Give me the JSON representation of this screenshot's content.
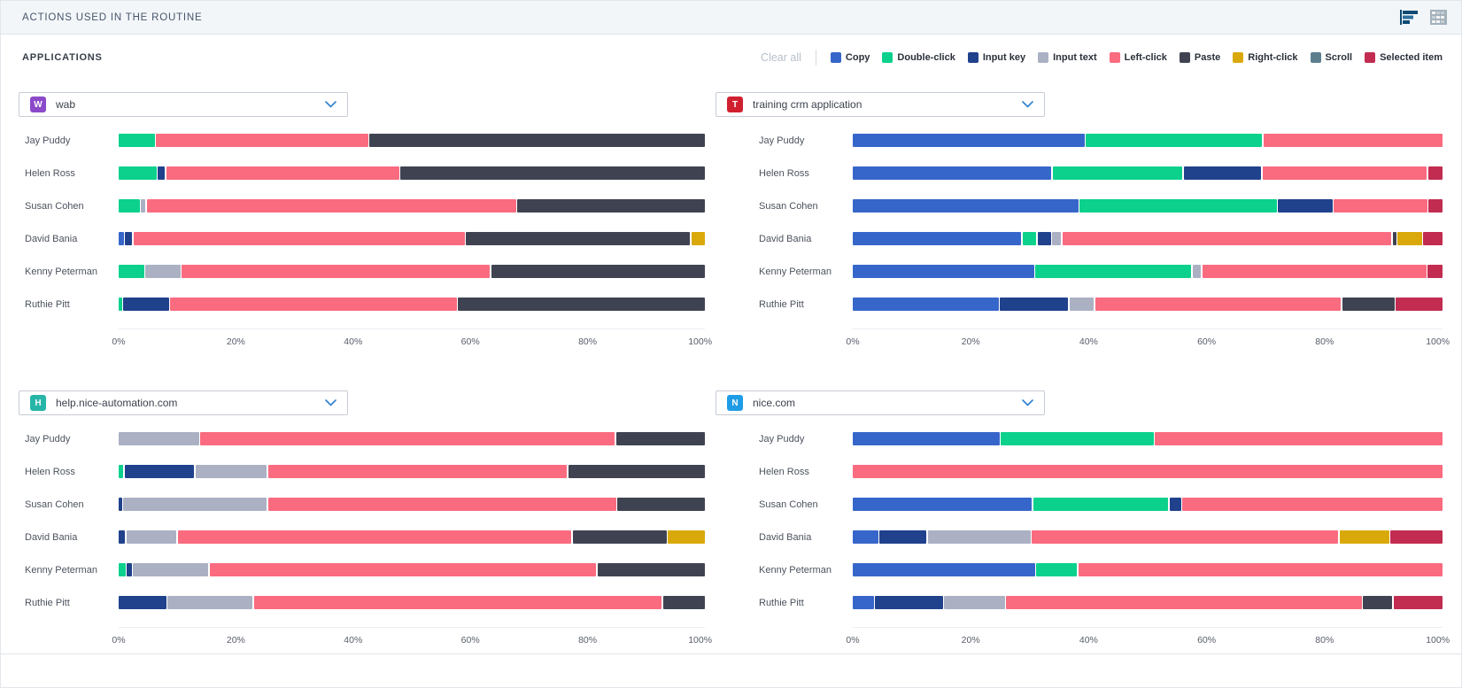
{
  "header": {
    "title": "ACTIONS USED IN THE ROUTINE",
    "icons": [
      {
        "name": "chart-view-icon",
        "active_color": "#0d4a72"
      },
      {
        "name": "table-view-icon",
        "color": "#9fadb8"
      }
    ]
  },
  "subheader": {
    "title": "APPLICATIONS",
    "clear_all_label": "Clear all"
  },
  "legend": {
    "position": "top-right",
    "items": [
      {
        "key": "copy",
        "label": "Copy",
        "color": "#3766ca"
      },
      {
        "key": "double-click",
        "label": "Double-click",
        "color": "#0bd18c"
      },
      {
        "key": "input-key",
        "label": "Input key",
        "color": "#20418c"
      },
      {
        "key": "input-text",
        "label": "Input text",
        "color": "#abb1c3"
      },
      {
        "key": "left-click",
        "label": "Left-click",
        "color": "#fa6b80"
      },
      {
        "key": "paste",
        "label": "Paste",
        "color": "#3f4351"
      },
      {
        "key": "right-click",
        "label": "Right-click",
        "color": "#d9a90c"
      },
      {
        "key": "scroll",
        "label": "Scroll",
        "color": "#5d7f8d"
      },
      {
        "key": "selected-item",
        "label": "Selected item",
        "color": "#c22c50"
      }
    ]
  },
  "chart_data": [
    {
      "type": "bar",
      "orientation": "horizontal-stacked",
      "units": "percent",
      "xlim": [
        0,
        100
      ],
      "x_ticks": [
        "0%",
        "20%",
        "40%",
        "60%",
        "80%",
        "100%"
      ],
      "application": {
        "name": "wab",
        "icon_letter": "W",
        "icon_color": "#8b4ac9"
      },
      "categories": [
        "Jay Puddy",
        "Helen Ross",
        "Susan Cohen",
        "David Bania",
        "Kenny Peterman",
        "Ruthie Pitt"
      ],
      "rows": [
        {
          "user": "Jay Puddy",
          "segments": [
            {
              "action": "Double-click",
              "pct": 6.2
            },
            {
              "action": "Left-click",
              "pct": 36.3
            },
            {
              "action": "Paste",
              "pct": 57.5
            }
          ]
        },
        {
          "user": "Helen Ross",
          "segments": [
            {
              "action": "Double-click",
              "pct": 6.5
            },
            {
              "action": "Input key",
              "pct": 1.2
            },
            {
              "action": "Left-click",
              "pct": 40.0
            },
            {
              "action": "Paste",
              "pct": 52.3
            }
          ]
        },
        {
          "user": "Susan Cohen",
          "segments": [
            {
              "action": "Double-click",
              "pct": 3.6
            },
            {
              "action": "Input text",
              "pct": 0.8
            },
            {
              "action": "Left-click",
              "pct": 63.4
            },
            {
              "action": "Paste",
              "pct": 32.2
            }
          ]
        },
        {
          "user": "David Bania",
          "segments": [
            {
              "action": "Copy",
              "pct": 0.9
            },
            {
              "action": "Input key",
              "pct": 1.2
            },
            {
              "action": "Left-click",
              "pct": 57.0
            },
            {
              "action": "Paste",
              "pct": 38.6
            },
            {
              "action": "Right-click",
              "pct": 2.3
            }
          ]
        },
        {
          "user": "Kenny Peterman",
          "segments": [
            {
              "action": "Double-click",
              "pct": 4.4
            },
            {
              "action": "Input text",
              "pct": 6.0
            },
            {
              "action": "Left-click",
              "pct": 52.9
            },
            {
              "action": "Paste",
              "pct": 36.7
            }
          ]
        },
        {
          "user": "Ruthie Pitt",
          "segments": [
            {
              "action": "Double-click",
              "pct": 0.6
            },
            {
              "action": "Input key",
              "pct": 7.8
            },
            {
              "action": "Left-click",
              "pct": 49.2
            },
            {
              "action": "Paste",
              "pct": 42.4
            }
          ]
        }
      ]
    },
    {
      "type": "bar",
      "orientation": "horizontal-stacked",
      "units": "percent",
      "xlim": [
        0,
        100
      ],
      "x_ticks": [
        "0%",
        "20%",
        "40%",
        "60%",
        "80%",
        "100%"
      ],
      "application": {
        "name": "training crm application",
        "icon_letter": "T",
        "icon_color": "#d0202f"
      },
      "categories": [
        "Jay Puddy",
        "Helen Ross",
        "Susan Cohen",
        "David Bania",
        "Kenny Peterman",
        "Ruthie Pitt"
      ],
      "rows": [
        {
          "user": "Jay Puddy",
          "segments": [
            {
              "action": "Copy",
              "pct": 39.5
            },
            {
              "action": "Double-click",
              "pct": 30.0
            },
            {
              "action": "Left-click",
              "pct": 30.5
            }
          ]
        },
        {
          "user": "Helen Ross",
          "segments": [
            {
              "action": "Copy",
              "pct": 34.0
            },
            {
              "action": "Double-click",
              "pct": 22.2
            },
            {
              "action": "Input key",
              "pct": 13.2
            },
            {
              "action": "Left-click",
              "pct": 28.1
            },
            {
              "action": "Selected item",
              "pct": 2.5
            }
          ]
        },
        {
          "user": "Susan Cohen",
          "segments": [
            {
              "action": "Copy",
              "pct": 38.6
            },
            {
              "action": "Double-click",
              "pct": 33.7
            },
            {
              "action": "Input key",
              "pct": 9.3
            },
            {
              "action": "Left-click",
              "pct": 16.0
            },
            {
              "action": "Selected item",
              "pct": 2.4
            }
          ]
        },
        {
          "user": "David Bania",
          "segments": [
            {
              "action": "Copy",
              "pct": 29.0
            },
            {
              "action": "Double-click",
              "pct": 2.4
            },
            {
              "action": "Input key",
              "pct": 2.3
            },
            {
              "action": "Input text",
              "pct": 1.5
            },
            {
              "action": "Left-click",
              "pct": 56.7
            },
            {
              "action": "Paste",
              "pct": 0.6
            },
            {
              "action": "Right-click",
              "pct": 4.2
            },
            {
              "action": "Selected item",
              "pct": 3.3
            }
          ]
        },
        {
          "user": "Kenny Peterman",
          "segments": [
            {
              "action": "Copy",
              "pct": 31.0
            },
            {
              "action": "Double-click",
              "pct": 26.7
            },
            {
              "action": "Input text",
              "pct": 1.4
            },
            {
              "action": "Left-click",
              "pct": 38.4
            },
            {
              "action": "Selected item",
              "pct": 2.5
            }
          ]
        },
        {
          "user": "Ruthie Pitt",
          "segments": [
            {
              "action": "Copy",
              "pct": 25.0
            },
            {
              "action": "Input key",
              "pct": 11.7
            },
            {
              "action": "Input text",
              "pct": 4.2
            },
            {
              "action": "Left-click",
              "pct": 42.1
            },
            {
              "action": "Paste",
              "pct": 9.0
            },
            {
              "action": "Selected item",
              "pct": 8.0
            }
          ]
        }
      ]
    },
    {
      "type": "bar",
      "orientation": "horizontal-stacked",
      "units": "percent",
      "xlim": [
        0,
        100
      ],
      "x_ticks": [
        "0%",
        "20%",
        "40%",
        "60%",
        "80%",
        "100%"
      ],
      "application": {
        "name": "help.nice-automation.com",
        "icon_letter": "H",
        "icon_color": "#26b5a7"
      },
      "categories": [
        "Jay Puddy",
        "Helen Ross",
        "Susan Cohen",
        "David Bania",
        "Kenny Peterman",
        "Ruthie Pitt"
      ],
      "rows": [
        {
          "user": "Jay Puddy",
          "segments": [
            {
              "action": "Input text",
              "pct": 13.8
            },
            {
              "action": "Left-click",
              "pct": 71.0
            },
            {
              "action": "Paste",
              "pct": 15.2
            }
          ]
        },
        {
          "user": "Helen Ross",
          "segments": [
            {
              "action": "Double-click",
              "pct": 0.8
            },
            {
              "action": "Input key",
              "pct": 12.0
            },
            {
              "action": "Input text",
              "pct": 12.2
            },
            {
              "action": "Left-click",
              "pct": 51.5
            },
            {
              "action": "Paste",
              "pct": 23.5
            }
          ]
        },
        {
          "user": "Susan Cohen",
          "segments": [
            {
              "action": "Input key",
              "pct": 0.6
            },
            {
              "action": "Input text",
              "pct": 24.6
            },
            {
              "action": "Left-click",
              "pct": 59.8
            },
            {
              "action": "Paste",
              "pct": 15.0
            }
          ]
        },
        {
          "user": "David Bania",
          "segments": [
            {
              "action": "Input key",
              "pct": 1.1
            },
            {
              "action": "Input text",
              "pct": 8.6
            },
            {
              "action": "Left-click",
              "pct": 67.8
            },
            {
              "action": "Paste",
              "pct": 16.1
            },
            {
              "action": "Right-click",
              "pct": 6.4
            }
          ]
        },
        {
          "user": "Kenny Peterman",
          "segments": [
            {
              "action": "Double-click",
              "pct": 1.2
            },
            {
              "action": "Input key",
              "pct": 0.8
            },
            {
              "action": "Input text",
              "pct": 13.0
            },
            {
              "action": "Left-click",
              "pct": 66.5
            },
            {
              "action": "Paste",
              "pct": 18.5
            }
          ]
        },
        {
          "user": "Ruthie Pitt",
          "segments": [
            {
              "action": "Input key",
              "pct": 8.2
            },
            {
              "action": "Input text",
              "pct": 14.6
            },
            {
              "action": "Left-click",
              "pct": 70.0
            },
            {
              "action": "Paste",
              "pct": 7.2
            }
          ]
        }
      ]
    },
    {
      "type": "bar",
      "orientation": "horizontal-stacked",
      "units": "percent",
      "xlim": [
        0,
        100
      ],
      "x_ticks": [
        "0%",
        "20%",
        "40%",
        "60%",
        "80%",
        "100%"
      ],
      "application": {
        "name": "nice.com",
        "icon_letter": "N",
        "icon_color": "#1f9ce6"
      },
      "categories": [
        "Jay Puddy",
        "Helen Ross",
        "Susan Cohen",
        "David Bania",
        "Kenny Peterman",
        "Ruthie Pitt"
      ],
      "rows": [
        {
          "user": "Jay Puddy",
          "segments": [
            {
              "action": "Copy",
              "pct": 25.0
            },
            {
              "action": "Double-click",
              "pct": 26.0
            },
            {
              "action": "Left-click",
              "pct": 49.0
            }
          ]
        },
        {
          "user": "Helen Ross",
          "segments": [
            {
              "action": "Left-click",
              "pct": 100.0
            }
          ]
        },
        {
          "user": "Susan Cohen",
          "segments": [
            {
              "action": "Copy",
              "pct": 30.6
            },
            {
              "action": "Double-click",
              "pct": 23.0
            },
            {
              "action": "Input key",
              "pct": 2.0
            },
            {
              "action": "Left-click",
              "pct": 44.4
            }
          ]
        },
        {
          "user": "David Bania",
          "segments": [
            {
              "action": "Copy",
              "pct": 4.4
            },
            {
              "action": "Input key",
              "pct": 8.0
            },
            {
              "action": "Input text",
              "pct": 17.6
            },
            {
              "action": "Left-click",
              "pct": 52.6
            },
            {
              "action": "Right-click",
              "pct": 8.5
            },
            {
              "action": "Selected item",
              "pct": 8.9
            }
          ]
        },
        {
          "user": "Kenny Peterman",
          "segments": [
            {
              "action": "Copy",
              "pct": 31.0
            },
            {
              "action": "Double-click",
              "pct": 7.0
            },
            {
              "action": "Left-click",
              "pct": 62.0
            }
          ]
        },
        {
          "user": "Ruthie Pitt",
          "segments": [
            {
              "action": "Copy",
              "pct": 3.6
            },
            {
              "action": "Input key",
              "pct": 11.6
            },
            {
              "action": "Input text",
              "pct": 10.4
            },
            {
              "action": "Left-click",
              "pct": 61.0
            },
            {
              "action": "Paste",
              "pct": 5.0
            },
            {
              "action": "Selected item",
              "pct": 8.4
            }
          ]
        }
      ]
    }
  ]
}
